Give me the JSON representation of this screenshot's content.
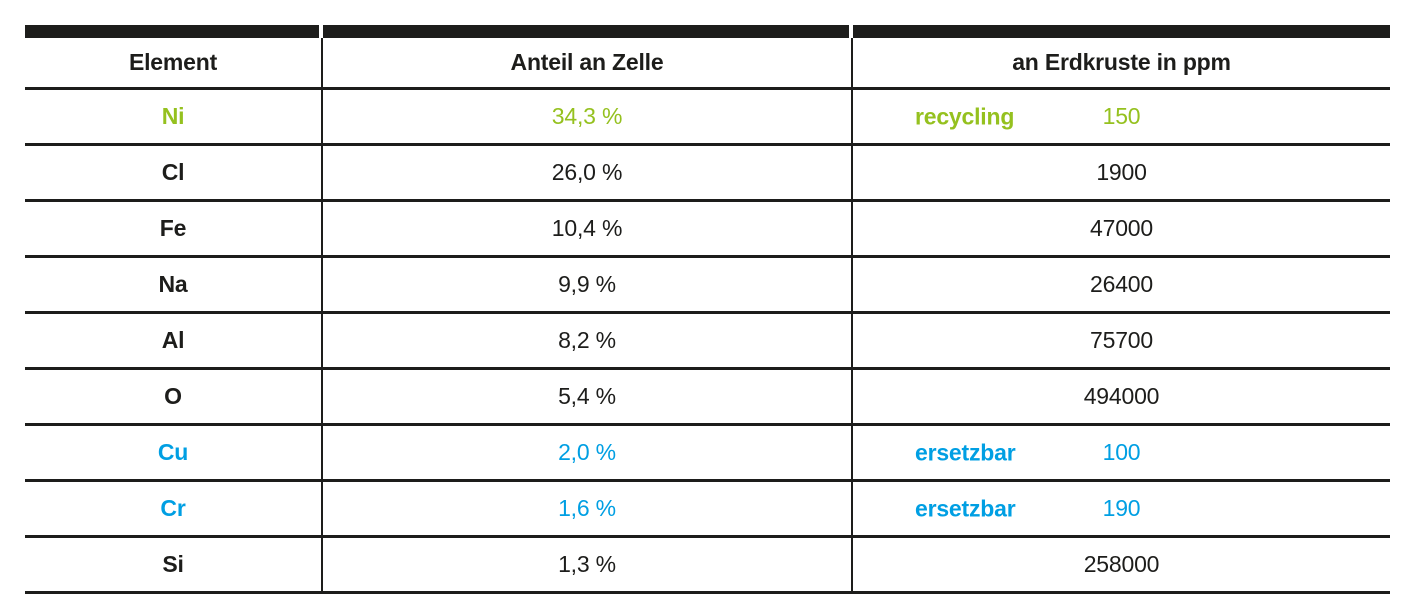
{
  "colors": {
    "black": "#1d1d1b",
    "green": "#95c11f",
    "blue": "#009fe3"
  },
  "header": {
    "element": "Element",
    "share": "Anteil an Zelle",
    "crust": "an Erdkruste in ppm"
  },
  "rows": [
    {
      "element": "Ni",
      "share": "34,3 %",
      "crust_label": "recycling",
      "crust_value": "150",
      "color": "green"
    },
    {
      "element": "Cl",
      "share": "26,0 %",
      "crust_value": "1900"
    },
    {
      "element": "Fe",
      "share": "10,4 %",
      "crust_value": "47000"
    },
    {
      "element": "Na",
      "share": "9,9 %",
      "crust_value": "26400"
    },
    {
      "element": "Al",
      "share": "8,2 %",
      "crust_value": "75700"
    },
    {
      "element": "O",
      "share": "5,4 %",
      "crust_value": "494000"
    },
    {
      "element": "Cu",
      "share": "2,0 %",
      "crust_label": "ersetzbar",
      "crust_value": "100",
      "color": "blue"
    },
    {
      "element": "Cr",
      "share": "1,6 %",
      "crust_label": "ersetzbar",
      "crust_value": "190",
      "color": "blue"
    },
    {
      "element": "Si",
      "share": "1,3 %",
      "crust_value": "258000"
    }
  ],
  "chart_data": {
    "type": "table",
    "columns": [
      "Element",
      "Anteil an Zelle",
      "an Erdkruste in ppm"
    ],
    "rows": [
      {
        "element": "Ni",
        "anteil_an_zelle_pct": 34.3,
        "erdkruste_ppm": 150,
        "annotation": "recycling",
        "highlight": "green"
      },
      {
        "element": "Cl",
        "anteil_an_zelle_pct": 26.0,
        "erdkruste_ppm": 1900
      },
      {
        "element": "Fe",
        "anteil_an_zelle_pct": 10.4,
        "erdkruste_ppm": 47000
      },
      {
        "element": "Na",
        "anteil_an_zelle_pct": 9.9,
        "erdkruste_ppm": 26400
      },
      {
        "element": "Al",
        "anteil_an_zelle_pct": 8.2,
        "erdkruste_ppm": 75700
      },
      {
        "element": "O",
        "anteil_an_zelle_pct": 5.4,
        "erdkruste_ppm": 494000
      },
      {
        "element": "Cu",
        "anteil_an_zelle_pct": 2.0,
        "erdkruste_ppm": 100,
        "annotation": "ersetzbar",
        "highlight": "blue"
      },
      {
        "element": "Cr",
        "anteil_an_zelle_pct": 1.6,
        "erdkruste_ppm": 190,
        "annotation": "ersetzbar",
        "highlight": "blue"
      },
      {
        "element": "Si",
        "anteil_an_zelle_pct": 1.3,
        "erdkruste_ppm": 258000
      }
    ],
    "layout": {
      "grid": "horizontal rules + two vertical separators",
      "legend": "none"
    }
  }
}
